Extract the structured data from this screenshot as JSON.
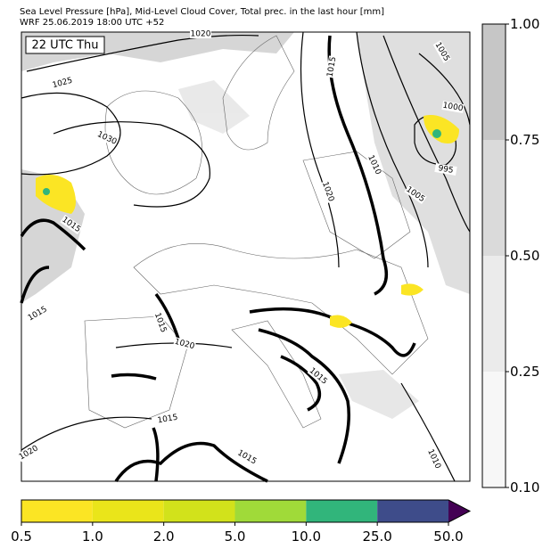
{
  "header": {
    "line1": "Sea Level Pressure [hPa], Mid-Level Cloud Cover, Total prec. in the last hour [mm]",
    "line2": "WRF 25.06.2019 18:00 UTC +52"
  },
  "map": {
    "time_label": "22 UTC Thu",
    "contour_labels": [
      "1020",
      "1025",
      "1030",
      "1015",
      "1015",
      "1015",
      "1020",
      "1015",
      "1020",
      "1015",
      "1015",
      "1020",
      "1015",
      "1010",
      "1005",
      "995",
      "1000",
      "1005",
      "1010"
    ]
  },
  "cloud_colorbar": {
    "ticks": [
      "0.10",
      "0.25",
      "0.50",
      "0.75",
      "1.00"
    ],
    "colors": [
      "#f7f7f7",
      "#ebebeb",
      "#dadada",
      "#c6c6c6"
    ]
  },
  "precip_colorbar": {
    "ticks": [
      "0.5",
      "1.0",
      "2.0",
      "5.0",
      "10.0",
      "25.0",
      "50.0"
    ],
    "colors": [
      "#fbe524",
      "#eae51a",
      "#d2e21b",
      "#a0da39",
      "#31b57b",
      "#3e4c8a"
    ],
    "extend_color": "#440154"
  }
}
